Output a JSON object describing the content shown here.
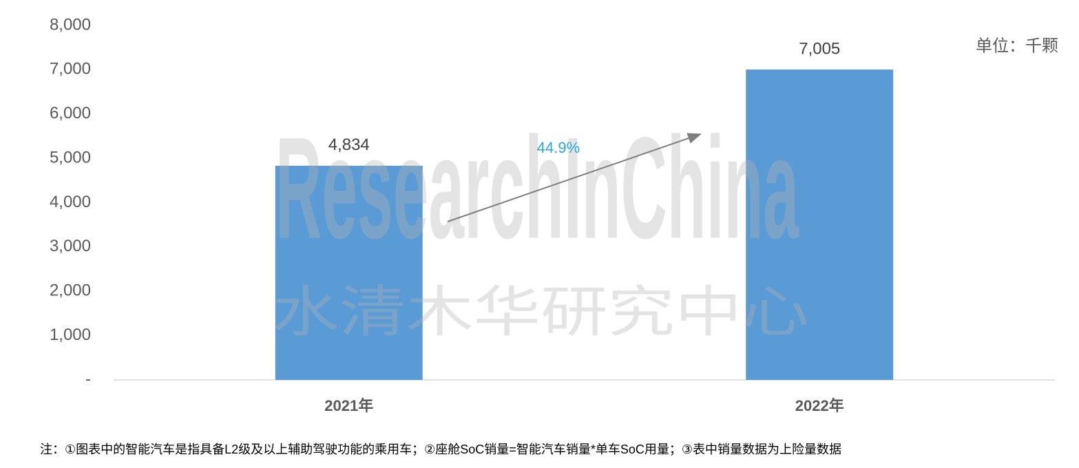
{
  "chart_data": {
    "type": "bar",
    "categories": [
      "2021年",
      "2022年"
    ],
    "values": [
      4834,
      7005
    ],
    "value_labels": [
      "4,834",
      "7,005"
    ],
    "color": "#5b9bd5",
    "ylim": [
      0,
      8000
    ],
    "yticks": [
      {
        "value": 0,
        "label": "-"
      },
      {
        "value": 1000,
        "label": "1,000"
      },
      {
        "value": 2000,
        "label": "2,000"
      },
      {
        "value": 3000,
        "label": "3,000"
      },
      {
        "value": 4000,
        "label": "4,000"
      },
      {
        "value": 5000,
        "label": "5,000"
      },
      {
        "value": 6000,
        "label": "6,000"
      },
      {
        "value": 7000,
        "label": "7,000"
      },
      {
        "value": 8000,
        "label": "8,000"
      }
    ],
    "grid": false,
    "growth_annotation": "44.9%",
    "unit": "单位：千颗",
    "note": "注：①图表中的智能汽车是指具备L2级及以上辅助驾驶功能的乘用车；②座舱SoC销量=智能汽车销量*单车SoC用量；③表中销量数据为上险量数据",
    "watermark": "ResearchInChina",
    "watermark_cn": "水清木华研究中心"
  }
}
